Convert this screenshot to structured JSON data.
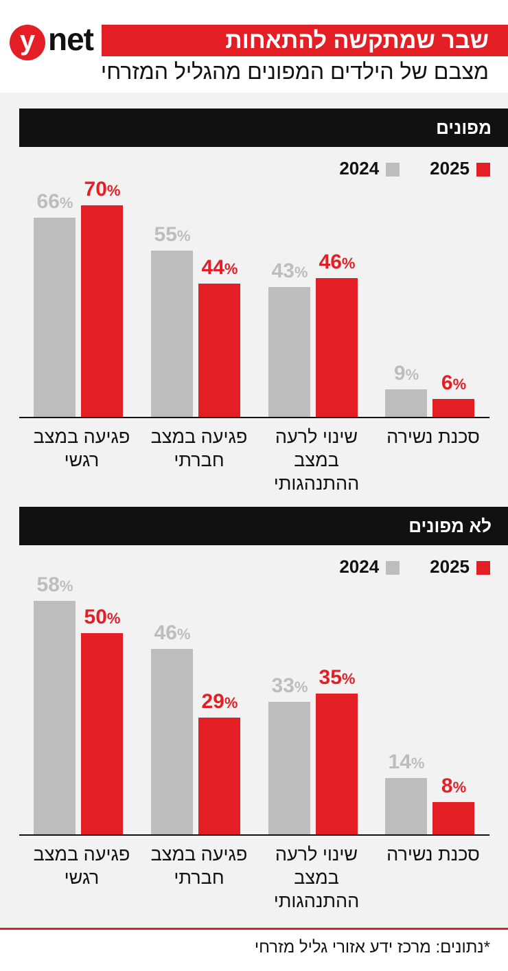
{
  "header": {
    "logo": "ynet",
    "title": "שבר שמתקשה להתאחות",
    "subtitle": "מצבם של הילדים המפונים מהגליל המזרחי"
  },
  "footer": "*נתונים: מרכז ידע אזורי גליל מזרחי",
  "colors": {
    "2024": "#bdbdbd",
    "2025": "#e31e24",
    "title": "#e31e24",
    "section": "#111111"
  },
  "legend": {
    "s2024": "2024",
    "s2025": "2025"
  },
  "chart_data": [
    {
      "type": "bar",
      "title": "מפונים",
      "categories": [
        "פגיעה במצב רגשי",
        "פגיעה במצב חברתי",
        "שינוי לרעה במצב ההתנהגותי",
        "סכנת נשירה"
      ],
      "series": [
        {
          "name": "2024",
          "values": [
            66,
            55,
            43,
            9
          ]
        },
        {
          "name": "2025",
          "values": [
            70,
            44,
            46,
            6
          ]
        }
      ],
      "unit": "%"
    },
    {
      "type": "bar",
      "title": "לא מפונים",
      "categories": [
        "פגיעה במצב רגשי",
        "פגיעה במצב חברתי",
        "שינוי לרעה במצב ההתנהגותי",
        "סכנת נשירה"
      ],
      "series": [
        {
          "name": "2024",
          "values": [
            58,
            46,
            33,
            14
          ]
        },
        {
          "name": "2025",
          "values": [
            50,
            29,
            35,
            8
          ]
        }
      ],
      "unit": "%"
    }
  ]
}
